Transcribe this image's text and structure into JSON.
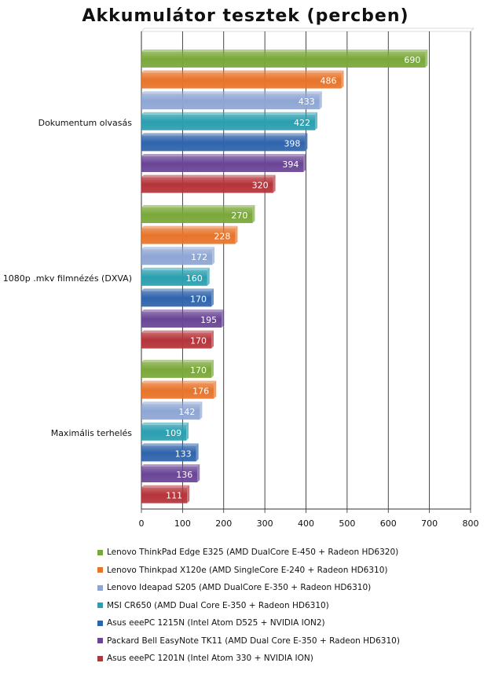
{
  "chart_data": {
    "type": "bar",
    "orientation": "horizontal",
    "title": "Akkumulátor tesztek (percben)",
    "xlabel": "",
    "ylabel": "",
    "xlim": [
      0,
      800
    ],
    "xticks": [
      0,
      100,
      200,
      300,
      400,
      500,
      600,
      700,
      800
    ],
    "grid": true,
    "legend_position": "bottom",
    "categories": [
      "Dokumentum olvasás",
      "1080p .mkv filmnézés (DXVA)",
      "Maximális terhelés"
    ],
    "series": [
      {
        "name": "Lenovo ThinkPad Edge E325 (AMD DualCore E-450 + Radeon HD6320)",
        "color": "#7aa83a",
        "values": [
          690,
          270,
          170
        ]
      },
      {
        "name": "Lenovo Thinkpad X120e (AMD SingleCore E-240 + Radeon HD6310)",
        "color": "#e8742a",
        "values": [
          486,
          228,
          176
        ]
      },
      {
        "name": "Lenovo Ideapad S205 (AMD DualCore E-350 + Radeon HD6310)",
        "color": "#8ea6d4",
        "values": [
          433,
          172,
          142
        ]
      },
      {
        "name": "MSI CR650 (AMD Dual Core E-350 + Radeon HD6310)",
        "color": "#2a9fb0",
        "values": [
          422,
          160,
          109
        ]
      },
      {
        "name": "Asus eeePC 1215N (Intel Atom D525 + NVIDIA ION2)",
        "color": "#2f64ac",
        "values": [
          398,
          170,
          133
        ]
      },
      {
        "name": "Packard Bell EasyNote TK11 (AMD Dual Core E-350 + Radeon HD6310)",
        "color": "#6a4596",
        "values": [
          394,
          195,
          136
        ]
      },
      {
        "name": "Asus eeePC 1201N (Intel Atom 330 + NVIDIA ION)",
        "color": "#b5343a",
        "values": [
          320,
          170,
          111
        ]
      }
    ]
  }
}
